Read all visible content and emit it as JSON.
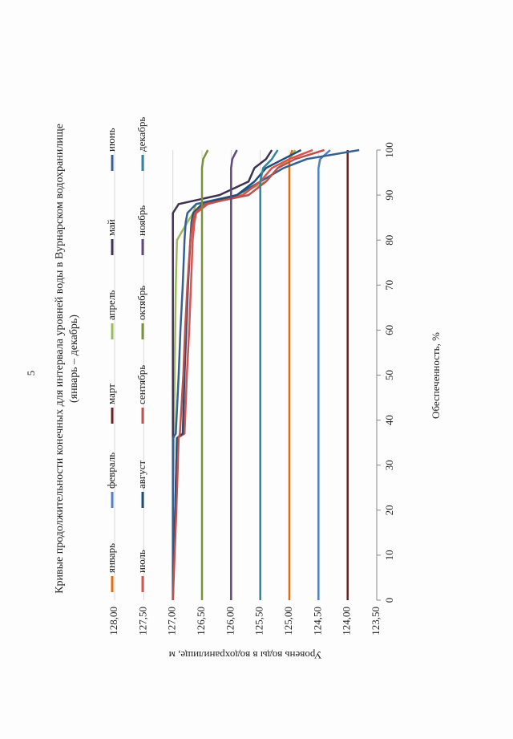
{
  "page_number": "5",
  "chart_data": {
    "type": "line",
    "title": "Кривые продолжительности конечных для интервала уровней воды в Вурнарском водохранилище",
    "subtitle": "(январь – декабрь)",
    "x_label": "Обеспеченность, %",
    "y_label": "Уровень воды в водохранилище, м",
    "x": [
      0,
      10,
      20,
      36,
      37,
      50,
      60,
      70,
      80,
      84,
      86,
      88,
      90,
      93,
      96,
      98,
      100
    ],
    "xlim": [
      0,
      100
    ],
    "xticks": [
      0,
      10,
      20,
      30,
      40,
      50,
      60,
      70,
      80,
      90,
      100
    ],
    "ylim": [
      123.5,
      128
    ],
    "yticks": [
      {
        "value": 123.5,
        "label": "123,50"
      },
      {
        "value": 124,
        "label": "124,00"
      },
      {
        "value": 124.5,
        "label": "124,50"
      },
      {
        "value": 125,
        "label": "125,00"
      },
      {
        "value": 125.5,
        "label": "125,50"
      },
      {
        "value": 126,
        "label": "126,00"
      },
      {
        "value": 126.5,
        "label": "126,50"
      },
      {
        "value": 127,
        "label": "127,00"
      },
      {
        "value": 127.5,
        "label": "127,50"
      },
      {
        "value": 128,
        "label": "128,00"
      }
    ],
    "grid": true,
    "legend": "top",
    "series": [
      {
        "name": "январь",
        "color": "#e46c0a",
        "values": [
          125,
          125,
          125,
          125,
          125,
          125,
          125,
          125,
          125,
          125,
          125,
          125,
          125,
          125,
          125,
          125,
          124.95
        ]
      },
      {
        "name": "февраль",
        "color": "#4f81bd",
        "values": [
          124.5,
          124.5,
          124.5,
          124.5,
          124.5,
          124.5,
          124.5,
          124.5,
          124.5,
          124.5,
          124.5,
          124.5,
          124.5,
          124.5,
          124.5,
          124.47,
          124.3
        ]
      },
      {
        "name": "март",
        "color": "#632523",
        "values": [
          124,
          124,
          124,
          124,
          124,
          124,
          124,
          124,
          124,
          124,
          124,
          124,
          124,
          124,
          124,
          124,
          124
        ]
      },
      {
        "name": "апрель",
        "color": "#9bbb59",
        "values": [
          127,
          127,
          127,
          126.98,
          126.98,
          126.97,
          126.96,
          126.95,
          126.93,
          126.75,
          126.65,
          126.6,
          125.9,
          125.4,
          125.2,
          125,
          124.9
        ]
      },
      {
        "name": "май",
        "color": "#3f3151",
        "values": [
          127,
          127,
          127,
          127,
          127,
          127,
          127,
          127,
          127,
          127,
          127,
          126.9,
          126.2,
          125.7,
          125.6,
          125.4,
          125.3
        ]
      },
      {
        "name": "июнь",
        "color": "#366092",
        "values": [
          127,
          127,
          127,
          127,
          126.95,
          126.9,
          126.87,
          126.83,
          126.8,
          126.78,
          126.75,
          126.6,
          125.9,
          125.5,
          125.1,
          124.7,
          123.8
        ]
      },
      {
        "name": "июль",
        "color": "#d9534f",
        "values": [
          127,
          126.98,
          126.96,
          126.93,
          126.8,
          126.76,
          126.72,
          126.69,
          126.66,
          126.63,
          126.6,
          126.4,
          125.8,
          125.5,
          125.3,
          125,
          124.6
        ]
      },
      {
        "name": "август",
        "color": "#1f4e79",
        "values": [
          127,
          126.98,
          126.96,
          126.93,
          126.83,
          126.8,
          126.77,
          126.74,
          126.7,
          126.68,
          126.65,
          126.5,
          125.9,
          125.6,
          125.4,
          125.1,
          124.8
        ]
      },
      {
        "name": "сентябрь",
        "color": "#c0504d",
        "values": [
          127,
          126.97,
          126.94,
          126.9,
          126.88,
          126.82,
          126.79,
          126.75,
          126.7,
          126.66,
          126.62,
          126.45,
          125.7,
          125.4,
          125.2,
          124.9,
          124.4
        ]
      },
      {
        "name": "октябрь",
        "color": "#76923c",
        "values": [
          126.5,
          126.5,
          126.5,
          126.5,
          126.5,
          126.5,
          126.5,
          126.5,
          126.5,
          126.5,
          126.5,
          126.5,
          126.5,
          126.5,
          126.5,
          126.48,
          126.4
        ]
      },
      {
        "name": "ноябрь",
        "color": "#604a7b",
        "values": [
          126,
          126,
          126,
          126,
          126,
          126,
          126,
          126,
          126,
          126,
          126,
          126,
          126,
          126,
          126,
          125.98,
          125.9
        ]
      },
      {
        "name": "декабрь",
        "color": "#31859c",
        "values": [
          125.5,
          125.5,
          125.5,
          125.5,
          125.5,
          125.5,
          125.5,
          125.5,
          125.5,
          125.5,
          125.5,
          125.5,
          125.5,
          125.5,
          125.45,
          125.3,
          125.2
        ]
      }
    ]
  }
}
